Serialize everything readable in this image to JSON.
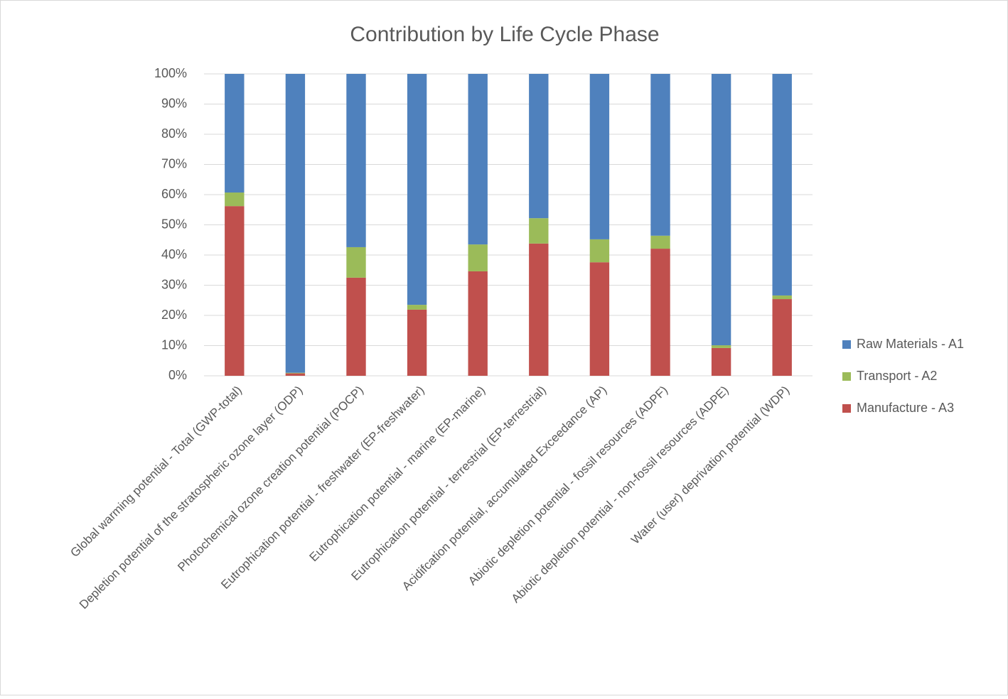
{
  "chart_data": {
    "type": "stacked_bar",
    "title": "Contribution by Life Cycle Phase",
    "categories": [
      "Global warming potential - Total (GWP-total)",
      "Depletion potential of the stratospheric ozone layer (ODP)",
      "Photochemical ozone creation potential (POCP)",
      "Eutrophication potential - freshwater (EP-freshwater)",
      "Eutrophication potential - marine (EP-marine)",
      "Eutrophication potential - terrestrial (EP-terrestrial)",
      "Acidifcation potential, accumulated Exceedance (AP)",
      "Abiotic depletion potential - fossil resources (ADPF)",
      "Abiotic depletion potential - non-fossil resources (ADPE)",
      "Water (user) deprivation potential (WDP)"
    ],
    "series": [
      {
        "name": "Manufacture - A3",
        "color": "#c0504d",
        "values": [
          56.2,
          0.8,
          32.5,
          21.9,
          34.6,
          43.8,
          37.6,
          42.1,
          9.2,
          25.4
        ]
      },
      {
        "name": "Transport - A2",
        "color": "#9bbb59",
        "values": [
          4.5,
          0.2,
          10.1,
          1.6,
          8.9,
          8.4,
          7.6,
          4.3,
          0.9,
          1.2
        ]
      },
      {
        "name": "Raw Materials - A1",
        "color": "#4f81bd",
        "values": [
          39.3,
          99,
          57.4,
          76.5,
          56.5,
          47.8,
          54.8,
          53.6,
          89.9,
          73.4
        ]
      }
    ],
    "ylim": [
      0,
      100
    ],
    "yticks": [
      {
        "value": 0,
        "label": "0%"
      },
      {
        "value": 10,
        "label": "10%"
      },
      {
        "value": 20,
        "label": "20%"
      },
      {
        "value": 30,
        "label": "30%"
      },
      {
        "value": 40,
        "label": "40%"
      },
      {
        "value": 50,
        "label": "50%"
      },
      {
        "value": 60,
        "label": "60%"
      },
      {
        "value": 70,
        "label": "70%"
      },
      {
        "value": 80,
        "label": "80%"
      },
      {
        "value": 90,
        "label": "90%"
      },
      {
        "value": 100,
        "label": "100%"
      }
    ],
    "grid": true,
    "legend": "right"
  }
}
